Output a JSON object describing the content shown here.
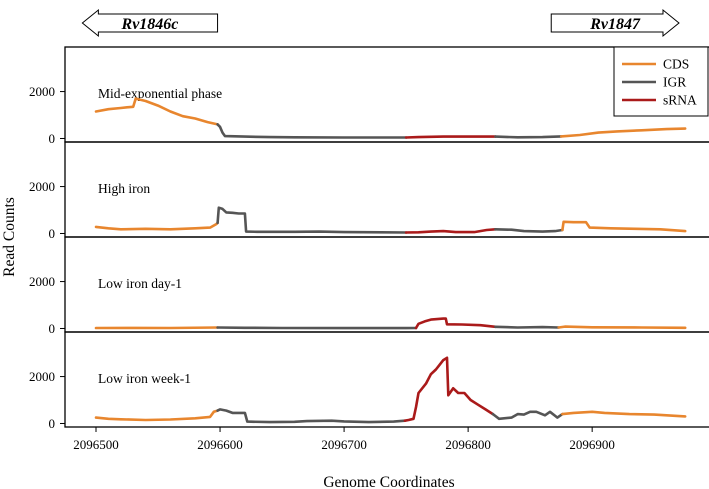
{
  "colors": {
    "CDS": "#e8862e",
    "IGR": "#555555",
    "sRNA": "#aa1a1a"
  },
  "chart_data": {
    "type": "line",
    "xlabel": "Genome Coordinates",
    "ylabel": "Read Counts",
    "xlim": [
      2096475,
      2096995
    ],
    "x_ticks": [
      2096500,
      2096600,
      2096700,
      2096800,
      2096900
    ],
    "x_tick_labels": [
      "2096500",
      "2096600",
      "2096700",
      "2096800",
      "2096900"
    ],
    "ylim": [
      -150,
      3900
    ],
    "y_ticks": [
      0,
      2000
    ],
    "y_tick_labels": [
      "0",
      "2000"
    ],
    "legend": {
      "placement": "top-right",
      "entries": [
        "CDS",
        "IGR",
        "sRNA"
      ]
    },
    "genes": [
      {
        "name": "Rv1846c",
        "direction": "left",
        "x_start": 2096489,
        "x_end": 2096598
      },
      {
        "name": "Rv1847",
        "direction": "right",
        "x_start": 2096867,
        "x_end": 2096970
      }
    ],
    "panels": [
      {
        "name": "Mid-exponential phase",
        "segments": [
          {
            "type": "CDS",
            "points": [
              [
                2096500,
                1150
              ],
              [
                2096510,
                1250
              ],
              [
                2096520,
                1300
              ],
              [
                2096525,
                1330
              ],
              [
                2096530,
                1350
              ],
              [
                2096532,
                1700
              ],
              [
                2096540,
                1600
              ],
              [
                2096550,
                1400
              ],
              [
                2096560,
                1150
              ],
              [
                2096570,
                950
              ],
              [
                2096580,
                850
              ],
              [
                2096590,
                700
              ],
              [
                2096598,
                600
              ]
            ]
          },
          {
            "type": "IGR",
            "points": [
              [
                2096598,
                600
              ],
              [
                2096600,
                500
              ],
              [
                2096602,
                250
              ],
              [
                2096604,
                100
              ],
              [
                2096620,
                80
              ],
              [
                2096640,
                60
              ],
              [
                2096660,
                50
              ],
              [
                2096700,
                40
              ],
              [
                2096750,
                40
              ]
            ]
          },
          {
            "type": "sRNA",
            "points": [
              [
                2096750,
                40
              ],
              [
                2096760,
                60
              ],
              [
                2096780,
                80
              ],
              [
                2096800,
                80
              ],
              [
                2096822,
                80
              ]
            ]
          },
          {
            "type": "IGR",
            "points": [
              [
                2096822,
                80
              ],
              [
                2096840,
                50
              ],
              [
                2096860,
                60
              ],
              [
                2096875,
                90
              ]
            ]
          },
          {
            "type": "CDS",
            "points": [
              [
                2096875,
                90
              ],
              [
                2096890,
                150
              ],
              [
                2096905,
                250
              ],
              [
                2096920,
                300
              ],
              [
                2096940,
                350
              ],
              [
                2096960,
                400
              ],
              [
                2096975,
                420
              ]
            ]
          }
        ]
      },
      {
        "name": "High iron",
        "segments": [
          {
            "type": "CDS",
            "points": [
              [
                2096500,
                280
              ],
              [
                2096510,
                220
              ],
              [
                2096520,
                180
              ],
              [
                2096540,
                200
              ],
              [
                2096560,
                180
              ],
              [
                2096580,
                220
              ],
              [
                2096592,
                250
              ],
              [
                2096597,
                400
              ],
              [
                2096598,
                450
              ]
            ]
          },
          {
            "type": "IGR",
            "points": [
              [
                2096598,
                450
              ],
              [
                2096599,
                1100
              ],
              [
                2096602,
                1050
              ],
              [
                2096605,
                900
              ],
              [
                2096610,
                880
              ],
              [
                2096615,
                850
              ],
              [
                2096620,
                850
              ],
              [
                2096621,
                80
              ],
              [
                2096630,
                70
              ],
              [
                2096660,
                70
              ],
              [
                2096680,
                80
              ],
              [
                2096700,
                60
              ],
              [
                2096730,
                50
              ],
              [
                2096750,
                40
              ]
            ]
          },
          {
            "type": "sRNA",
            "points": [
              [
                2096750,
                40
              ],
              [
                2096760,
                50
              ],
              [
                2096770,
                80
              ],
              [
                2096780,
                100
              ],
              [
                2096790,
                60
              ],
              [
                2096805,
                60
              ],
              [
                2096815,
                150
              ],
              [
                2096822,
                180
              ]
            ]
          },
          {
            "type": "IGR",
            "points": [
              [
                2096822,
                180
              ],
              [
                2096835,
                160
              ],
              [
                2096845,
                100
              ],
              [
                2096860,
                80
              ],
              [
                2096870,
                100
              ],
              [
                2096876,
                150
              ]
            ]
          },
          {
            "type": "CDS",
            "points": [
              [
                2096876,
                150
              ],
              [
                2096877,
                500
              ],
              [
                2096885,
                480
              ],
              [
                2096895,
                480
              ],
              [
                2096898,
                250
              ],
              [
                2096915,
                220
              ],
              [
                2096935,
                200
              ],
              [
                2096955,
                180
              ],
              [
                2096975,
                100
              ]
            ]
          }
        ]
      },
      {
        "name": "Low iron day-1",
        "segments": [
          {
            "type": "CDS",
            "points": [
              [
                2096500,
                20
              ],
              [
                2096530,
                25
              ],
              [
                2096560,
                20
              ],
              [
                2096598,
                40
              ]
            ]
          },
          {
            "type": "IGR",
            "points": [
              [
                2096598,
                40
              ],
              [
                2096620,
                30
              ],
              [
                2096650,
                20
              ],
              [
                2096700,
                15
              ],
              [
                2096750,
                15
              ],
              [
                2096758,
                20
              ]
            ]
          },
          {
            "type": "sRNA",
            "points": [
              [
                2096758,
                20
              ],
              [
                2096760,
                200
              ],
              [
                2096765,
                300
              ],
              [
                2096770,
                380
              ],
              [
                2096780,
                420
              ],
              [
                2096782,
                420
              ],
              [
                2096783,
                180
              ],
              [
                2096795,
                170
              ],
              [
                2096810,
                140
              ],
              [
                2096822,
                70
              ]
            ]
          },
          {
            "type": "IGR",
            "points": [
              [
                2096822,
                70
              ],
              [
                2096840,
                40
              ],
              [
                2096860,
                60
              ],
              [
                2096873,
                40
              ]
            ]
          },
          {
            "type": "CDS",
            "points": [
              [
                2096873,
                40
              ],
              [
                2096878,
                80
              ],
              [
                2096900,
                50
              ],
              [
                2096940,
                40
              ],
              [
                2096975,
                30
              ]
            ]
          }
        ]
      },
      {
        "name": "Low iron week-1",
        "segments": [
          {
            "type": "CDS",
            "points": [
              [
                2096500,
                250
              ],
              [
                2096510,
                200
              ],
              [
                2096520,
                180
              ],
              [
                2096540,
                150
              ],
              [
                2096560,
                170
              ],
              [
                2096580,
                220
              ],
              [
                2096592,
                280
              ],
              [
                2096595,
                500
              ],
              [
                2096598,
                550
              ]
            ]
          },
          {
            "type": "IGR",
            "points": [
              [
                2096598,
                550
              ],
              [
                2096600,
                600
              ],
              [
                2096605,
                550
              ],
              [
                2096610,
                450
              ],
              [
                2096620,
                450
              ],
              [
                2096622,
                80
              ],
              [
                2096640,
                60
              ],
              [
                2096660,
                70
              ],
              [
                2096670,
                100
              ],
              [
                2096690,
                120
              ],
              [
                2096700,
                90
              ],
              [
                2096720,
                60
              ],
              [
                2096740,
                80
              ],
              [
                2096749,
                120
              ]
            ]
          },
          {
            "type": "sRNA",
            "points": [
              [
                2096749,
                120
              ],
              [
                2096752,
                150
              ],
              [
                2096756,
                200
              ],
              [
                2096758,
                700
              ],
              [
                2096760,
                1300
              ],
              [
                2096766,
                1700
              ],
              [
                2096770,
                2100
              ],
              [
                2096774,
                2300
              ],
              [
                2096777,
                2500
              ],
              [
                2096780,
                2700
              ],
              [
                2096783,
                2800
              ],
              [
                2096784,
                1200
              ],
              [
                2096788,
                1500
              ],
              [
                2096792,
                1300
              ],
              [
                2096797,
                1300
              ],
              [
                2096802,
                1000
              ],
              [
                2096808,
                800
              ],
              [
                2096814,
                600
              ],
              [
                2096820,
                400
              ]
            ]
          },
          {
            "type": "IGR",
            "points": [
              [
                2096820,
                400
              ],
              [
                2096825,
                200
              ],
              [
                2096835,
                250
              ],
              [
                2096840,
                400
              ],
              [
                2096845,
                380
              ],
              [
                2096850,
                500
              ],
              [
                2096855,
                500
              ],
              [
                2096862,
                350
              ],
              [
                2096866,
                500
              ],
              [
                2096872,
                250
              ],
              [
                2096876,
                400
              ]
            ]
          },
          {
            "type": "CDS",
            "points": [
              [
                2096876,
                400
              ],
              [
                2096885,
                450
              ],
              [
                2096895,
                480
              ],
              [
                2096900,
                500
              ],
              [
                2096910,
                450
              ],
              [
                2096930,
                400
              ],
              [
                2096950,
                380
              ],
              [
                2096975,
                300
              ]
            ]
          }
        ]
      }
    ]
  }
}
